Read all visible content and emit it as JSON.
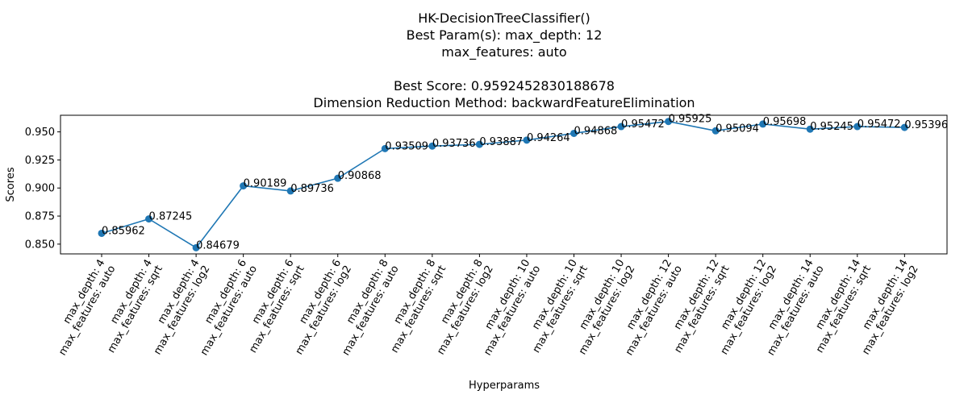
{
  "chart_data": {
    "type": "line",
    "title_lines": [
      "HK-DecisionTreeClassifier()",
      "Best Param(s): max_depth: 12",
      "max_features: auto",
      "",
      "Best Score: 0.9592452830188678",
      "Dimension Reduction Method: backwardFeatureElimination"
    ],
    "xlabel": "Hyperparams",
    "ylabel": "Scores",
    "categories": [
      [
        "max_depth: 4",
        "max_features: auto"
      ],
      [
        "max_depth: 4",
        "max_features: sqrt"
      ],
      [
        "max_depth: 4",
        "max_features: log2"
      ],
      [
        "max_depth: 6",
        "max_features: auto"
      ],
      [
        "max_depth: 6",
        "max_features: sqrt"
      ],
      [
        "max_depth: 6",
        "max_features: log2"
      ],
      [
        "max_depth: 8",
        "max_features: auto"
      ],
      [
        "max_depth: 8",
        "max_features: sqrt"
      ],
      [
        "max_depth: 8",
        "max_features: log2"
      ],
      [
        "max_depth: 10",
        "max_features: auto"
      ],
      [
        "max_depth: 10",
        "max_features: sqrt"
      ],
      [
        "max_depth: 10",
        "max_features: log2"
      ],
      [
        "max_depth: 12",
        "max_features: auto"
      ],
      [
        "max_depth: 12",
        "max_features: sqrt"
      ],
      [
        "max_depth: 12",
        "max_features: log2"
      ],
      [
        "max_depth: 14",
        "max_features: auto"
      ],
      [
        "max_depth: 14",
        "max_features: sqrt"
      ],
      [
        "max_depth: 14",
        "max_features: log2"
      ]
    ],
    "values": [
      0.85962,
      0.87245,
      0.84679,
      0.90189,
      0.89736,
      0.90868,
      0.93509,
      0.93736,
      0.93887,
      0.94264,
      0.94868,
      0.95472,
      0.95925,
      0.95094,
      0.95698,
      0.95245,
      0.95472,
      0.95396
    ],
    "value_labels": [
      "0.85962",
      "0.87245",
      "0.84679",
      "0.90189",
      "0.89736",
      "0.90868",
      "0.93509",
      "0.93736",
      "0.93887",
      "0.94264",
      "0.94868",
      "0.95472",
      "0.95925",
      "0.95094",
      "0.95698",
      "0.95245",
      "0.95472",
      "0.95396"
    ],
    "yticks": [
      0.85,
      0.875,
      0.9,
      0.925,
      0.95
    ],
    "ytick_labels": [
      "0.850",
      "0.875",
      "0.900",
      "0.925",
      "0.950"
    ],
    "ylim": [
      0.8413,
      0.9648
    ],
    "grid": false,
    "legend": "none",
    "line_color": "#1f77b4",
    "marker_color": "#1f77b4"
  }
}
